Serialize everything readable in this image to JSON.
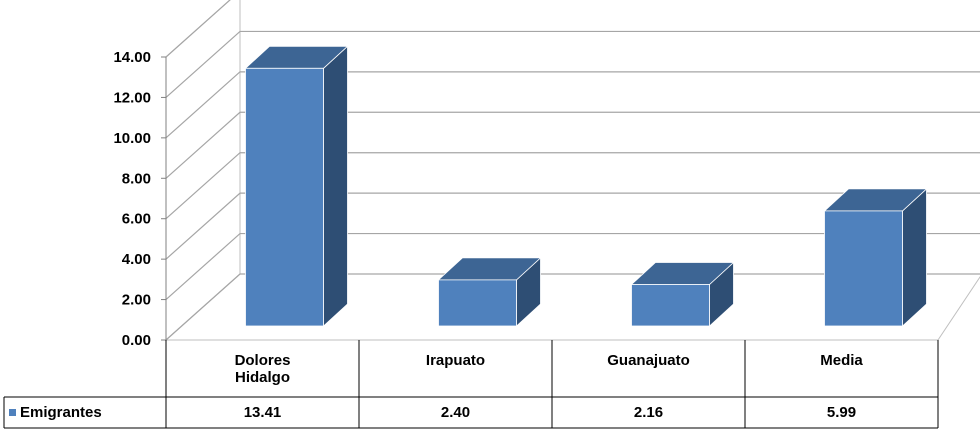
{
  "chart_data": {
    "type": "bar",
    "categories": [
      "Dolores\nHidalgo",
      "Irapuato",
      "Guanajuato",
      "Media"
    ],
    "series": [
      {
        "name": "Emigrantes",
        "values": [
          13.41,
          2.4,
          2.16,
          5.99
        ]
      }
    ],
    "value_labels": [
      "13.41",
      "2.40",
      "2.16",
      "5.99"
    ],
    "yticks": [
      "0.00",
      "2.00",
      "4.00",
      "6.00",
      "8.00",
      "10.00",
      "12.00",
      "14.00"
    ],
    "ylim": [
      0,
      14
    ],
    "grid": true,
    "three_d": true,
    "legend": "in data table",
    "data_table": true,
    "colors": {
      "bar_front": "#4f81bd",
      "bar_side": "#2e4e74",
      "bar_top": "#3d6594",
      "grid": "#a6a6a6"
    }
  }
}
